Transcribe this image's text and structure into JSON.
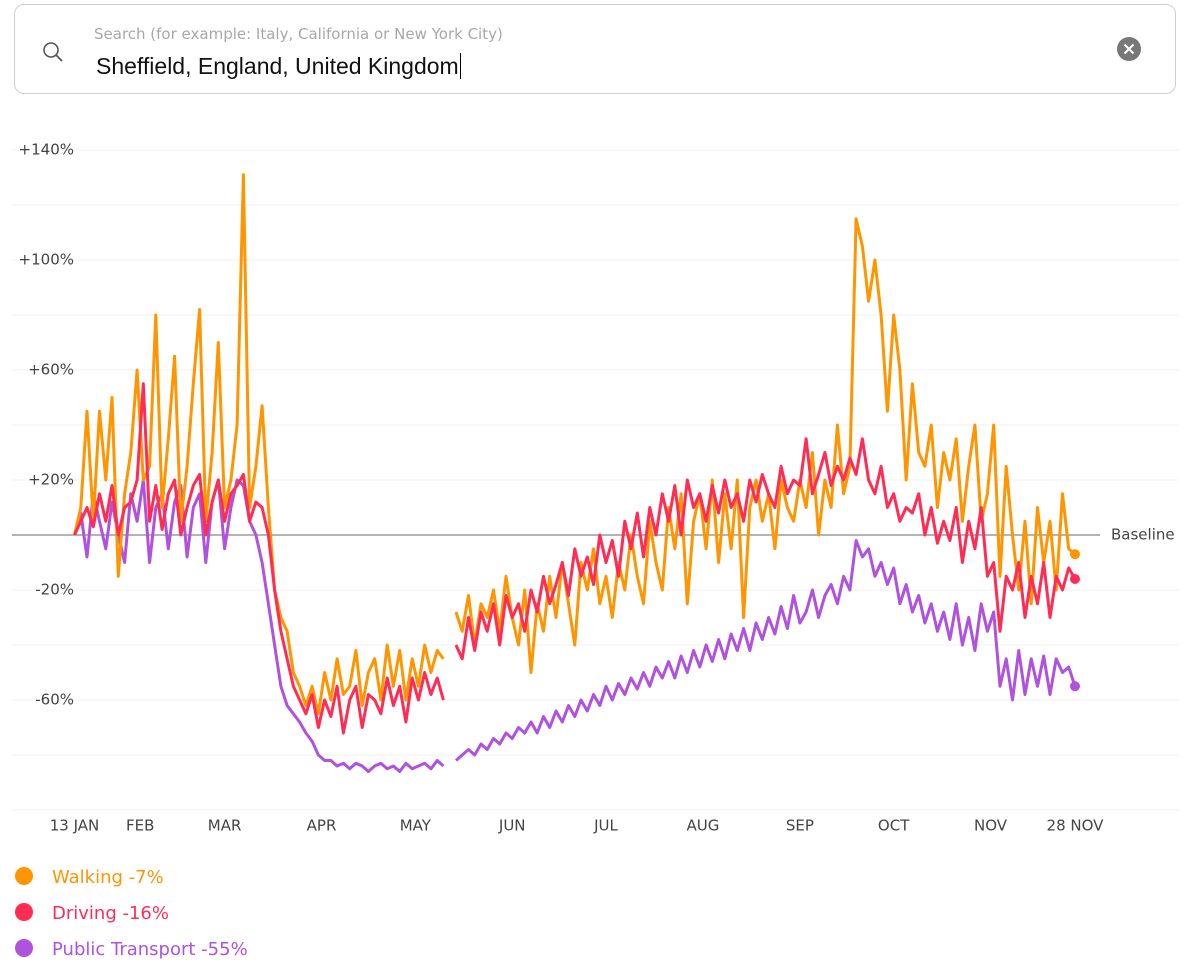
{
  "search": {
    "placeholder": "Search (for example: Italy, California or New York City)",
    "query": "Sheffield, England, United Kingdom"
  },
  "chart_data": {
    "type": "line",
    "x": [
      0,
      2,
      4,
      6,
      8,
      10,
      12,
      14,
      16,
      18,
      20,
      22,
      24,
      26,
      28,
      30,
      32,
      34,
      36,
      38,
      40,
      42,
      44,
      46,
      48,
      50,
      52,
      54,
      56,
      58,
      60,
      62,
      64,
      66,
      68,
      70,
      72,
      74,
      76,
      78,
      80,
      82,
      84,
      86,
      88,
      90,
      92,
      94,
      96,
      98,
      100,
      102,
      104,
      106,
      108,
      110,
      112,
      114,
      116,
      118,
      120,
      122,
      124,
      126,
      128,
      130,
      132,
      134,
      136,
      138,
      140,
      142,
      144,
      146,
      148,
      150,
      152,
      154,
      156,
      158,
      160,
      162,
      164,
      166,
      168,
      170,
      172,
      174,
      176,
      178,
      180,
      182,
      184,
      186,
      188,
      190,
      192,
      194,
      196,
      198,
      200,
      202,
      204,
      206,
      208,
      210,
      212,
      214,
      216,
      218,
      220,
      222,
      224,
      226,
      228,
      230,
      232,
      234,
      236,
      238,
      240,
      242,
      244,
      246,
      248,
      250,
      252,
      254,
      256,
      258,
      260,
      262,
      264,
      266,
      268,
      270,
      272,
      274,
      276,
      278,
      280,
      282,
      284,
      286,
      288,
      290,
      292,
      294,
      296,
      298,
      300,
      302,
      304,
      306,
      308,
      310,
      312,
      314,
      316,
      318,
      320
    ],
    "xlim": [
      -20,
      328
    ],
    "xticks": [
      {
        "value": 0,
        "label": "13 JAN"
      },
      {
        "value": 21,
        "label": "FEB"
      },
      {
        "value": 48,
        "label": "MAR"
      },
      {
        "value": 79,
        "label": "APR"
      },
      {
        "value": 109,
        "label": "MAY"
      },
      {
        "value": 140,
        "label": "JUN"
      },
      {
        "value": 170,
        "label": "JUL"
      },
      {
        "value": 201,
        "label": "AUG"
      },
      {
        "value": 232,
        "label": "SEP"
      },
      {
        "value": 262,
        "label": "OCT"
      },
      {
        "value": 293,
        "label": "NOV"
      },
      {
        "value": 320,
        "label": "28 NOV"
      }
    ],
    "ylim": [
      -100,
      140
    ],
    "yticks": [
      {
        "value": 140,
        "label": "+140%"
      },
      {
        "value": 100,
        "label": "+100%"
      },
      {
        "value": 60,
        "label": "+60%"
      },
      {
        "value": 20,
        "label": "+20%"
      },
      {
        "value": -20,
        "label": "-20%"
      },
      {
        "value": -60,
        "label": "-60%"
      }
    ],
    "yminor_grid": [
      120,
      80,
      40,
      -40,
      -80,
      -100
    ],
    "baseline": {
      "value": 0,
      "label": "Baseline"
    },
    "grid": true,
    "series": [
      {
        "name": "Walking -7%",
        "color": "#ff9500",
        "values": [
          0,
          10,
          45,
          5,
          45,
          20,
          50,
          -15,
          15,
          30,
          60,
          20,
          25,
          80,
          10,
          35,
          65,
          5,
          25,
          55,
          82,
          5,
          30,
          70,
          10,
          20,
          40,
          131,
          10,
          25,
          47,
          10,
          -20,
          -30,
          -35,
          -50,
          -55,
          -62,
          -55,
          -65,
          -50,
          -60,
          -45,
          -58,
          -55,
          -42,
          -62,
          -50,
          -45,
          -60,
          -40,
          -55,
          -42,
          -60,
          -45,
          -55,
          -40,
          -50,
          -42,
          -45,
          null,
          -28,
          -35,
          -22,
          -40,
          -25,
          -30,
          -20,
          -35,
          -15,
          -30,
          -40,
          -20,
          -50,
          -25,
          -35,
          -15,
          -30,
          -10,
          -25,
          -40,
          -10,
          -20,
          -5,
          -25,
          -15,
          -30,
          -10,
          -20,
          0,
          -15,
          -25,
          5,
          -10,
          -20,
          10,
          -5,
          15,
          -25,
          5,
          15,
          -5,
          20,
          -10,
          15,
          -5,
          20,
          -30,
          10,
          20,
          5,
          15,
          -5,
          20,
          10,
          5,
          20,
          10,
          30,
          0,
          20,
          10,
          40,
          15,
          25,
          115,
          105,
          85,
          100,
          80,
          45,
          80,
          60,
          20,
          55,
          30,
          25,
          40,
          10,
          30,
          20,
          35,
          5,
          25,
          40,
          5,
          15,
          40,
          -15,
          25,
          0,
          -20,
          5,
          -25,
          10,
          -10,
          5,
          -20,
          15,
          -5,
          -7
        ]
      },
      {
        "name": "Driving -16%",
        "color": "#ff2d55",
        "values": [
          0,
          5,
          10,
          3,
          15,
          5,
          18,
          0,
          10,
          12,
          20,
          55,
          5,
          18,
          2,
          15,
          20,
          0,
          10,
          18,
          22,
          0,
          12,
          20,
          5,
          15,
          18,
          22,
          5,
          12,
          10,
          0,
          -20,
          -35,
          -45,
          -55,
          -60,
          -65,
          -58,
          -70,
          -60,
          -66,
          -55,
          -72,
          -60,
          -55,
          -70,
          -58,
          -60,
          -65,
          -52,
          -62,
          -55,
          -68,
          -52,
          -60,
          -50,
          -58,
          -52,
          -60,
          null,
          -40,
          -45,
          -30,
          -42,
          -28,
          -35,
          -25,
          -40,
          -22,
          -30,
          -25,
          -35,
          -20,
          -28,
          -15,
          -25,
          -18,
          -10,
          -22,
          -5,
          -15,
          -8,
          -18,
          0,
          -10,
          -2,
          -15,
          5,
          -5,
          8,
          -8,
          10,
          0,
          15,
          5,
          18,
          0,
          20,
          10,
          15,
          5,
          18,
          8,
          20,
          10,
          15,
          5,
          20,
          12,
          22,
          15,
          10,
          25,
          15,
          20,
          18,
          35,
          15,
          22,
          30,
          18,
          25,
          20,
          28,
          22,
          35,
          20,
          15,
          25,
          10,
          15,
          5,
          10,
          8,
          15,
          0,
          10,
          -3,
          5,
          -2,
          10,
          -10,
          5,
          -5,
          10,
          -15,
          -10,
          -35,
          -15,
          -20,
          -10,
          -30,
          -15,
          -25,
          -10,
          -30,
          -15,
          -20,
          -12,
          -16
        ]
      },
      {
        "name": "Public Transport -55%",
        "color": "#af52de",
        "values": [
          0,
          8,
          -8,
          15,
          5,
          -5,
          12,
          0,
          -10,
          15,
          5,
          20,
          -10,
          10,
          15,
          -5,
          12,
          18,
          -8,
          10,
          15,
          -10,
          12,
          20,
          -5,
          10,
          20,
          18,
          5,
          0,
          -10,
          -25,
          -40,
          -55,
          -62,
          -65,
          -68,
          -72,
          -75,
          -80,
          -82,
          -82,
          -84,
          -83,
          -85,
          -83,
          -84,
          -86,
          -84,
          -83,
          -85,
          -84,
          -86,
          -83,
          -85,
          -84,
          -83,
          -85,
          -82,
          -84,
          null,
          -82,
          -80,
          -78,
          -80,
          -76,
          -78,
          -74,
          -76,
          -72,
          -74,
          -70,
          -72,
          -68,
          -72,
          -66,
          -70,
          -64,
          -68,
          -62,
          -66,
          -60,
          -64,
          -58,
          -62,
          -55,
          -60,
          -54,
          -58,
          -52,
          -56,
          -50,
          -55,
          -48,
          -52,
          -46,
          -52,
          -44,
          -50,
          -42,
          -48,
          -40,
          -46,
          -38,
          -45,
          -36,
          -42,
          -34,
          -42,
          -32,
          -38,
          -30,
          -36,
          -26,
          -34,
          -22,
          -32,
          -28,
          -20,
          -30,
          -22,
          -18,
          -25,
          -15,
          -20,
          -2,
          -8,
          -5,
          -15,
          -10,
          -18,
          -12,
          -25,
          -18,
          -28,
          -22,
          -32,
          -25,
          -35,
          -28,
          -38,
          -25,
          -40,
          -30,
          -42,
          -25,
          -35,
          -28,
          -55,
          -45,
          -60,
          -42,
          -58,
          -45,
          -55,
          -44,
          -58,
          -45,
          -50,
          -48,
          -55
        ]
      }
    ]
  }
}
